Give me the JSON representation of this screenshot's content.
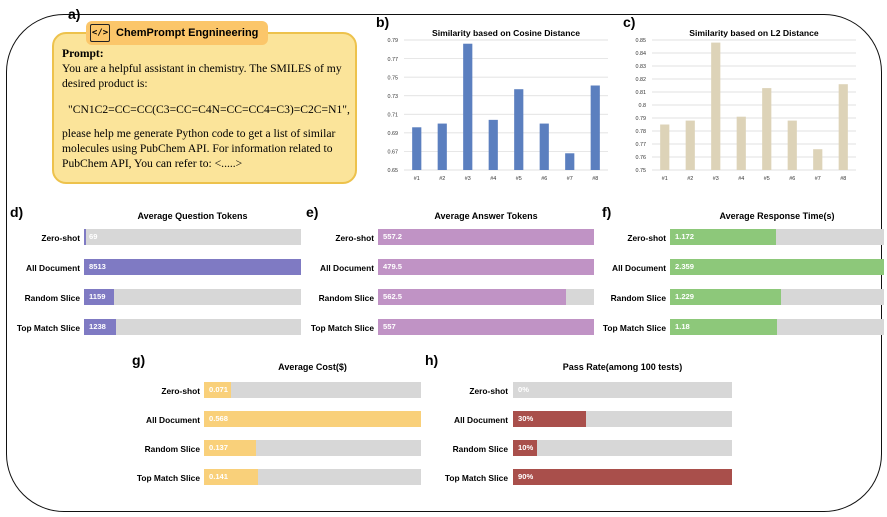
{
  "panel_labels": {
    "a": "a)",
    "b": "b)",
    "c": "c)",
    "d": "d)",
    "e": "e)",
    "f": "f)",
    "g": "g)",
    "h": "h)"
  },
  "prompt": {
    "tag_label": "ChemPrompt Engnineering",
    "tag_icon": "code-icon",
    "title": "Prompt:",
    "intro": "You are a helpful assistant in chemistry. The SMILES of my desired product is:",
    "smiles": "\"CN1C2=CC=CC(C3=CC=C4N=CC=CC4=C3)=C2C=N1\",",
    "request": "please help me generate Python code to get a list of similar molecules using PubChem API. For information related to PubChem API, You can refer to: <.....>",
    "box_color": "#fbe49a",
    "tag_color": "#fbc66a"
  },
  "chart_data": [
    {
      "panel": "b",
      "type": "bar",
      "title": "Similarity based on Cosine Distance",
      "categories": [
        "#1",
        "#2",
        "#3",
        "#4",
        "#5",
        "#6",
        "#7",
        "#8"
      ],
      "values": [
        0.696,
        0.7,
        0.786,
        0.704,
        0.737,
        0.7,
        0.668,
        0.741
      ],
      "ylim": [
        0.65,
        0.79
      ],
      "yticks": [
        "0.65",
        "0.67",
        "0.69",
        "0.71",
        "0.73",
        "0.75",
        "0.77",
        "0.79"
      ],
      "color": "#5b7fbf",
      "grid": true
    },
    {
      "panel": "c",
      "type": "bar",
      "title": "Similarity based on L2 Distance",
      "categories": [
        "#1",
        "#2",
        "#3",
        "#4",
        "#5",
        "#6",
        "#7",
        "#8"
      ],
      "values": [
        0.785,
        0.788,
        0.848,
        0.791,
        0.813,
        0.788,
        0.766,
        0.816
      ],
      "ylim": [
        0.75,
        0.85
      ],
      "yticks": [
        "0.75",
        "0.76",
        "0.77",
        "0.78",
        "0.79",
        "0.8",
        "0.81",
        "0.82",
        "0.83",
        "0.84",
        "0.85"
      ],
      "color": "#ddd3b8",
      "grid": true
    },
    {
      "panel": "d",
      "type": "bar",
      "orientation": "horizontal",
      "title": "Average Question Tokens",
      "categories": [
        "Zero-shot",
        "All Document",
        "Random Slice",
        "Top Match Slice"
      ],
      "values": [
        69,
        8513,
        1159,
        1238
      ],
      "value_labels": [
        "69",
        "8513",
        "1159",
        "1238"
      ],
      "xlim": [
        0,
        8513
      ],
      "color": "#7f7ac3"
    },
    {
      "panel": "e",
      "type": "bar",
      "orientation": "horizontal",
      "title": "Average Answer Tokens",
      "categories": [
        "Zero-shot",
        "All Document",
        "Random Slice",
        "Top Match Slice"
      ],
      "values": [
        557.2,
        479.5,
        562.5,
        557
      ],
      "value_labels": [
        "557.2",
        "479.5",
        "562.5",
        "557"
      ],
      "bar_fractions": [
        1.0,
        1.0,
        0.87,
        1.0
      ],
      "color": "#c093c5"
    },
    {
      "panel": "f",
      "type": "bar",
      "orientation": "horizontal",
      "title": "Average Response Time(s)",
      "categories": [
        "Zero-shot",
        "All Document",
        "Random Slice",
        "Top Match Slice"
      ],
      "values": [
        1.172,
        2.359,
        1.229,
        1.18
      ],
      "value_labels": [
        "1.172",
        "2.359",
        "1.229",
        "1.18"
      ],
      "xlim": [
        0,
        2.359
      ],
      "color": "#8dc87a"
    },
    {
      "panel": "g",
      "type": "bar",
      "orientation": "horizontal",
      "title": "Average Cost($)",
      "categories": [
        "Zero-shot",
        "All Document",
        "Random Slice",
        "Top Match Slice"
      ],
      "values": [
        0.071,
        0.568,
        0.137,
        0.141
      ],
      "value_labels": [
        "0.071",
        "0.568",
        "0.137",
        "0.141"
      ],
      "xlim": [
        0,
        0.568
      ],
      "color": "#f9d07a"
    },
    {
      "panel": "h",
      "type": "bar",
      "orientation": "horizontal",
      "title": "Pass Rate(among 100 tests)",
      "categories": [
        "Zero-shot",
        "All Document",
        "Random Slice",
        "Top Match Slice"
      ],
      "values": [
        0,
        30,
        10,
        90
      ],
      "value_labels": [
        "0%",
        "30%",
        "10%",
        "90%"
      ],
      "xlim": [
        0,
        90
      ],
      "color": "#a94f4b"
    }
  ]
}
